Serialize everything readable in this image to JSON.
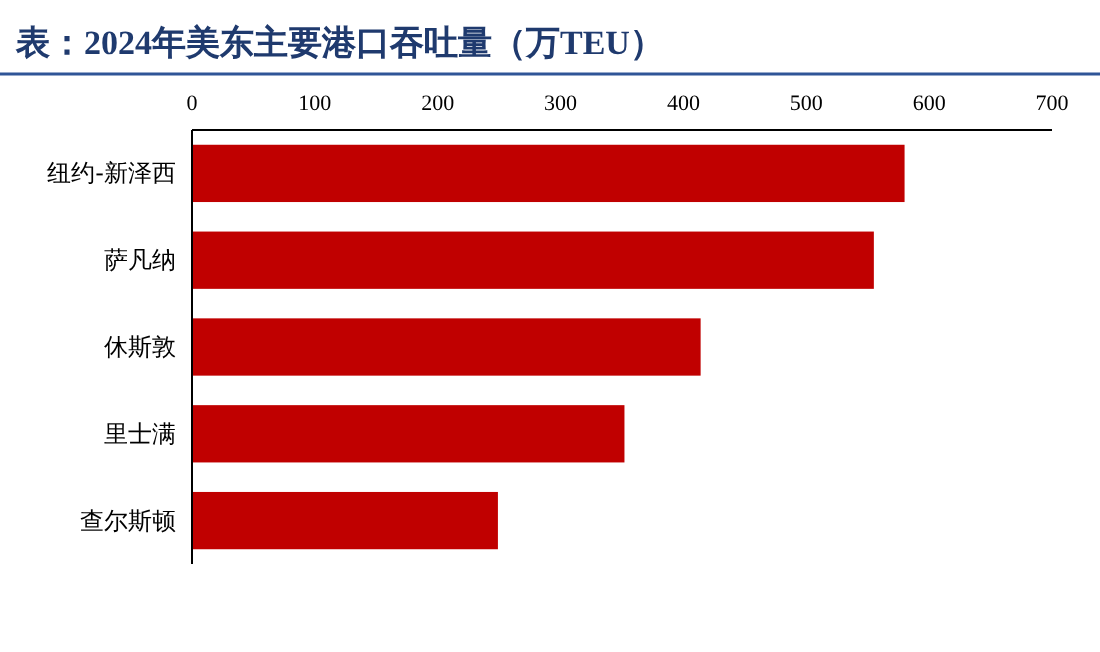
{
  "chart_data": {
    "type": "bar",
    "orientation": "horizontal",
    "title": "表：2024年美东主要港口吞吐量（万TEU）",
    "categories": [
      "纽约-新泽西",
      "萨凡纳",
      "休斯敦",
      "里士满",
      "查尔斯顿"
    ],
    "values": [
      580,
      555,
      414,
      352,
      249
    ],
    "color": "#c00000",
    "xlim": [
      0,
      700
    ],
    "xticks": [
      0,
      100,
      200,
      300,
      400,
      500,
      600,
      700
    ]
  }
}
